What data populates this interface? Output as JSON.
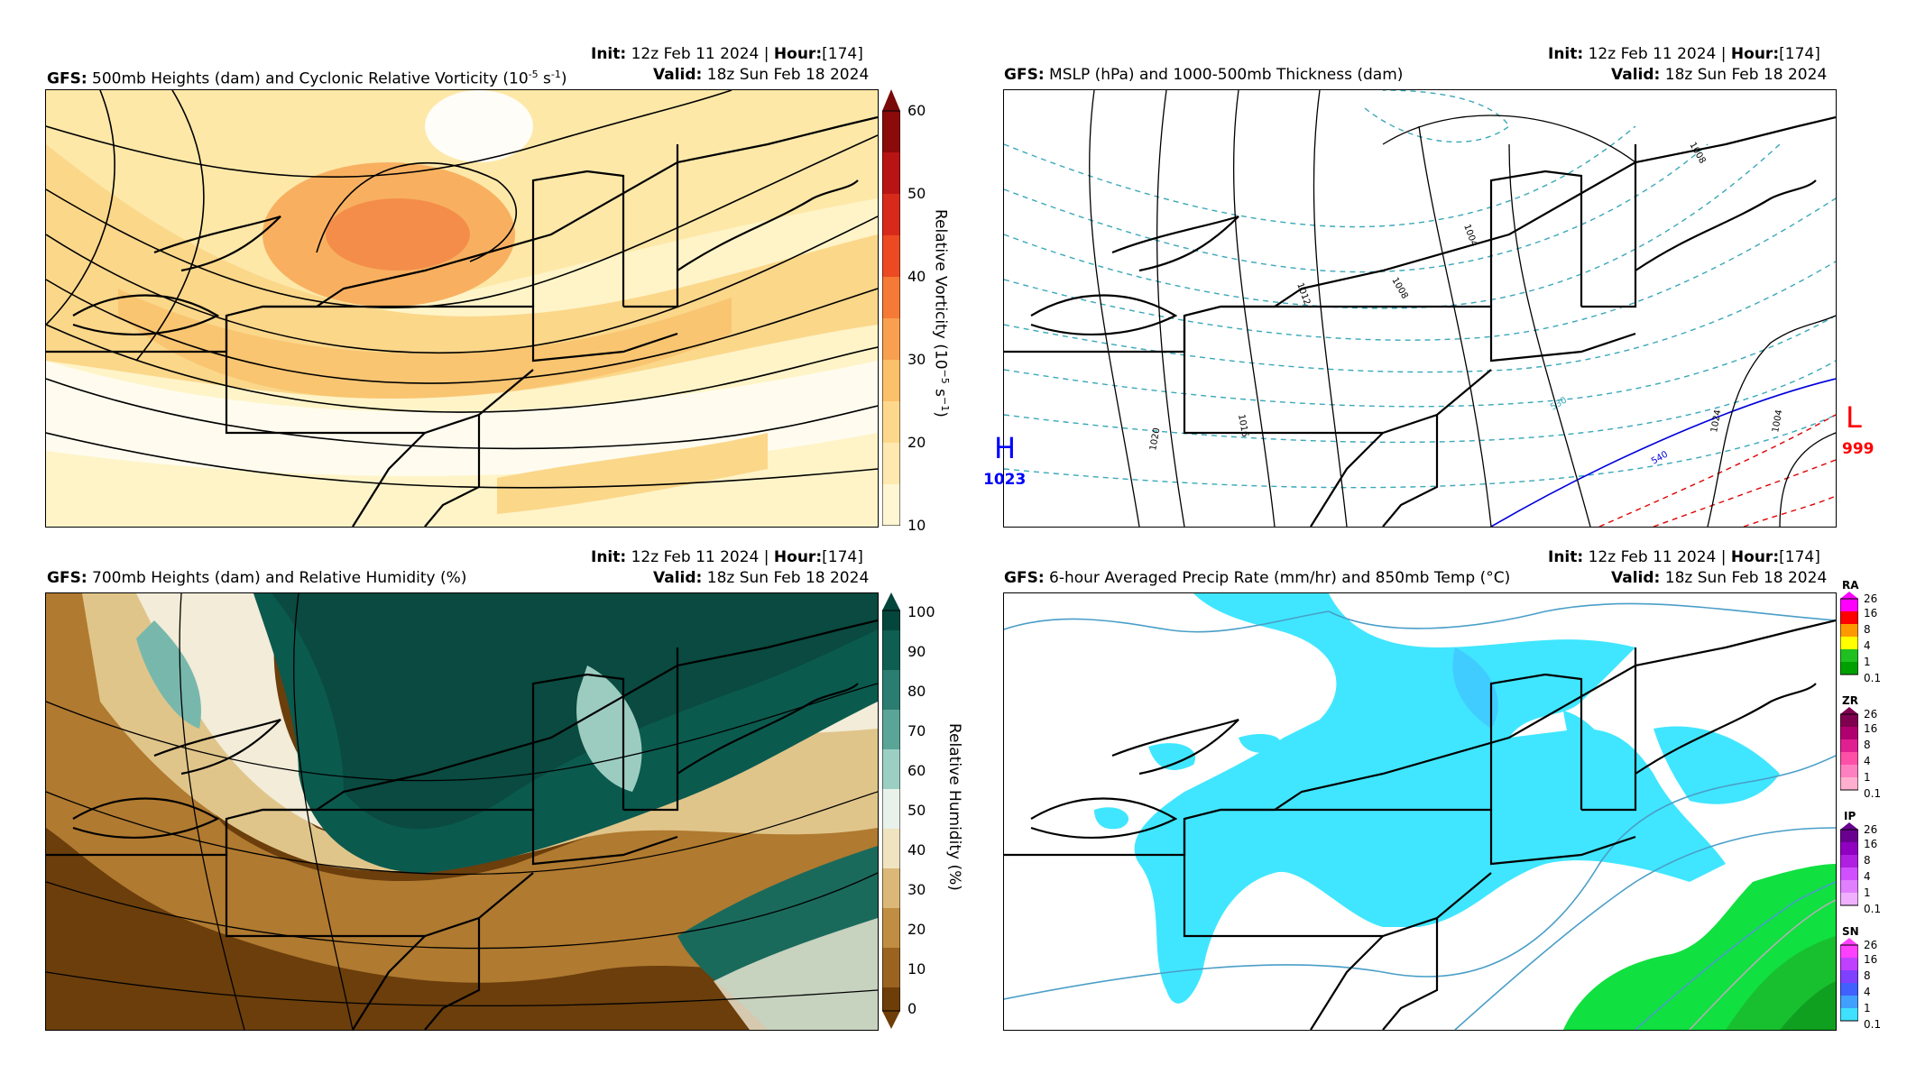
{
  "panels": [
    {
      "model": "GFS",
      "title": "500mb Heights (dam) and Cyclonic Relative Vorticity (10",
      "title_sup": "-5",
      "title_tail": " s",
      "title_sup2": "-1",
      "title_end": ")",
      "init_label": "Init",
      "init_value": "12z Feb 11 2024",
      "hour_label": "Hour",
      "hour_value": "[174]",
      "valid_label": "Valid",
      "valid_value": "18z Sun Feb 18 2024",
      "colorbar": {
        "label": "Relative Vorticity (10",
        "label_sup": "−5",
        "label_mid": " s",
        "label_sup2": "−1",
        "label_end": ")",
        "ticks": [
          "60",
          "50",
          "40",
          "30",
          "20",
          "10"
        ]
      }
    },
    {
      "model": "GFS",
      "title": "MSLP (hPa) and 1000-500mb Thickness (dam)",
      "init_label": "Init",
      "init_value": "12z Feb 11 2024",
      "hour_label": "Hour",
      "hour_value": "[174]",
      "valid_label": "Valid",
      "valid_value": "18z Sun Feb 18 2024",
      "high": {
        "letter": "H",
        "value": "1023",
        "color": "#0000ff"
      },
      "low": {
        "letter": "L",
        "value": "999",
        "color": "#ff0000"
      },
      "contour_labels": [
        "1008",
        "1004",
        "1008",
        "1012",
        "1016",
        "1020",
        "1024",
        "1004",
        "530",
        "540"
      ]
    },
    {
      "model": "GFS",
      "title": "700mb Heights (dam) and Relative Humidity (%)",
      "init_label": "Init",
      "init_value": "12z Feb 11 2024",
      "hour_label": "Hour",
      "hour_value": "[174]",
      "valid_label": "Valid",
      "valid_value": "18z Sun Feb 18 2024",
      "colorbar": {
        "label": "Relative Humidity (%)",
        "ticks": [
          "100",
          "90",
          "80",
          "70",
          "60",
          "50",
          "40",
          "30",
          "20",
          "10",
          "0"
        ]
      }
    },
    {
      "model": "GFS",
      "title": "6-hour Averaged Precip Rate (mm/hr) and 850mb Temp (°C)",
      "init_label": "Init",
      "init_value": "12z Feb 11 2024",
      "hour_label": "Hour",
      "hour_value": "[174]",
      "valid_label": "Valid",
      "valid_value": "18z Sun Feb 18 2024",
      "ptypes": [
        {
          "label": "RA",
          "colors": [
            "#00a000",
            "#20c020",
            "#ffff00",
            "#ff9900",
            "#ff0000",
            "#ff00ff"
          ],
          "ticks": [
            "26",
            "16",
            "8",
            "4",
            "1",
            "0.1"
          ]
        },
        {
          "label": "ZR",
          "colors": [
            "#ffb0d0",
            "#ff80c0",
            "#ff50a8",
            "#e02090",
            "#b00070",
            "#800050"
          ],
          "ticks": [
            "26",
            "16",
            "8",
            "4",
            "1",
            "0.1"
          ]
        },
        {
          "label": "IP",
          "colors": [
            "#f0b0ff",
            "#e080ff",
            "#d050ff",
            "#b020e0",
            "#9000c0",
            "#6a0090"
          ],
          "ticks": [
            "26",
            "16",
            "8",
            "4",
            "1",
            "0.1"
          ]
        },
        {
          "label": "SN",
          "colors": [
            "#40e0ff",
            "#40a0ff",
            "#4060ff",
            "#8040ff",
            "#c040ff",
            "#ff40ff"
          ],
          "ticks": [
            "26",
            "16",
            "8",
            "4",
            "1",
            "0.1"
          ]
        }
      ]
    }
  ]
}
